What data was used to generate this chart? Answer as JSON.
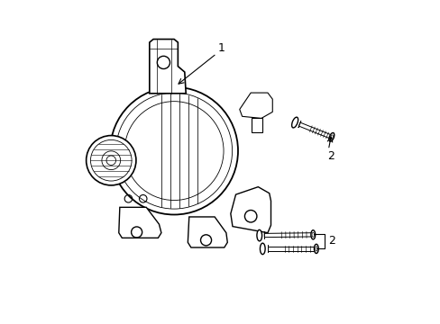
{
  "background_color": "#ffffff",
  "line_color": "#000000",
  "line_width": 1.0,
  "fig_width": 4.89,
  "fig_height": 3.6,
  "dpi": 100,
  "label_1": "1",
  "label_2": "2"
}
